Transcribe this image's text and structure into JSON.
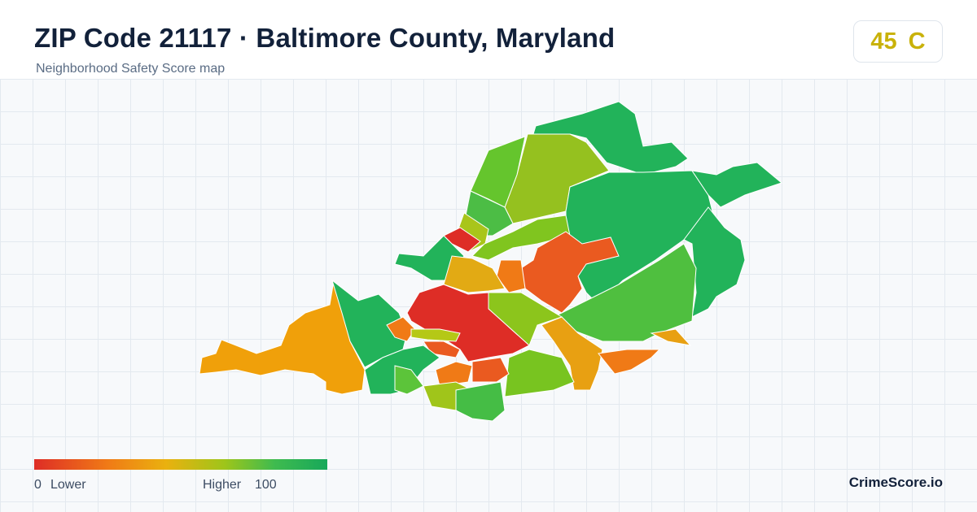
{
  "header": {
    "title": "ZIP Code 21117 · Baltimore County, Maryland",
    "subtitle": "Neighborhood Safety Score map"
  },
  "badge": {
    "score": 45,
    "grade": "C"
  },
  "legend": {
    "min": 0,
    "min_label": "Lower",
    "max_label": "Higher",
    "max": 100
  },
  "brand": "CrimeScore.io"
}
